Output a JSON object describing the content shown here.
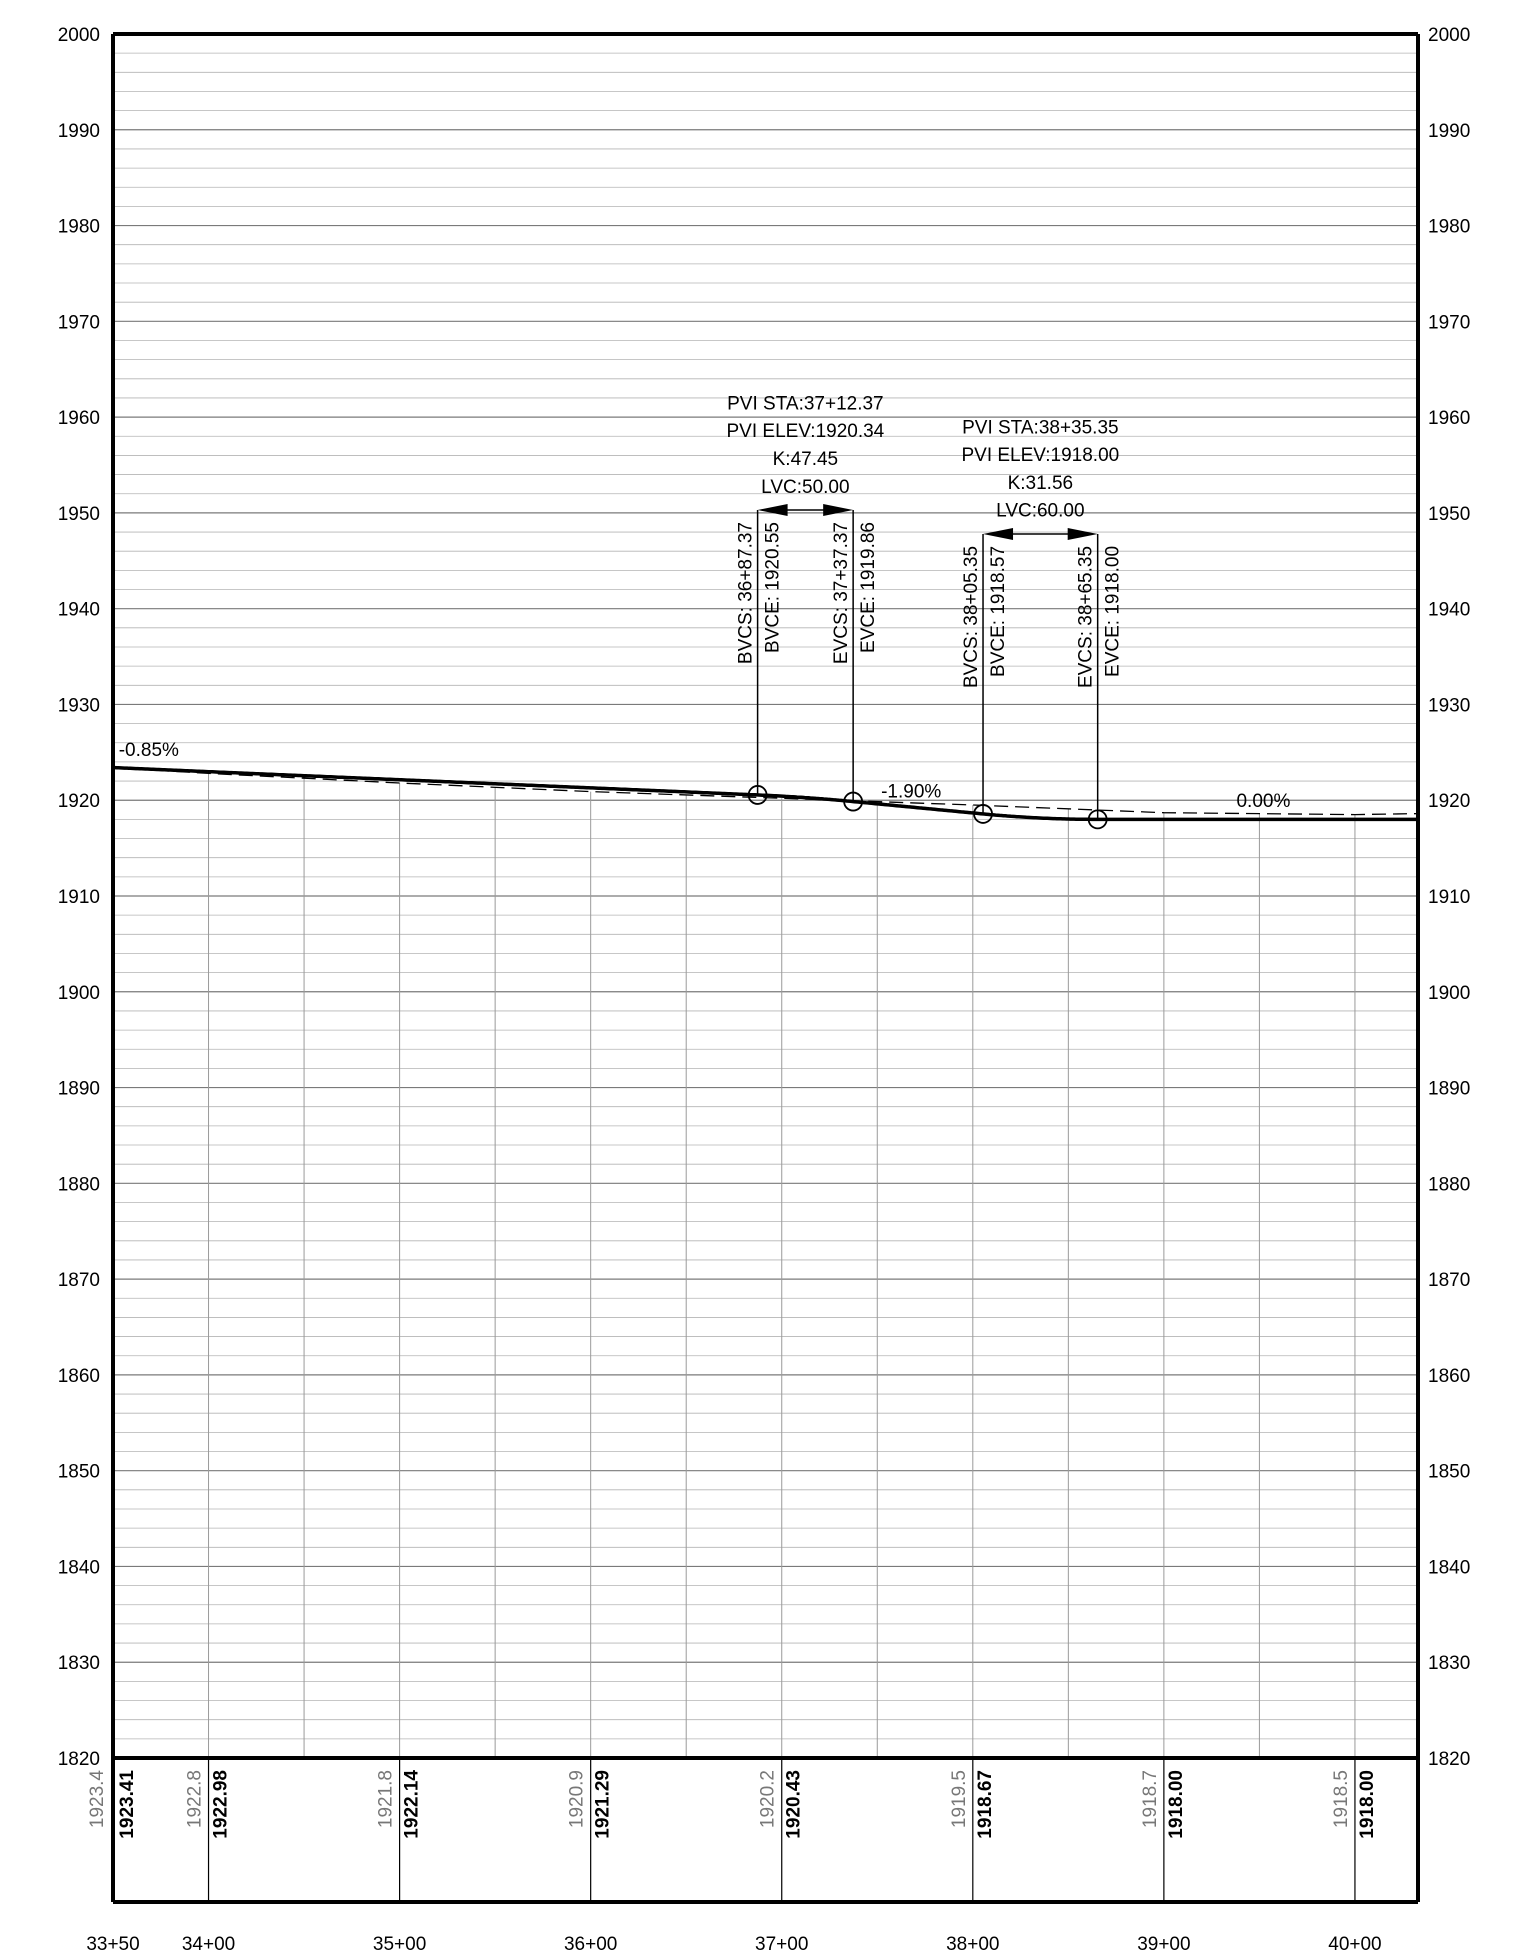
{
  "chart_data": {
    "type": "line",
    "title": "",
    "xlabel": "",
    "ylabel": "",
    "xlim": [
      3350,
      4033
    ],
    "ylim": [
      1820,
      2000
    ],
    "grid": true,
    "y_ticks": [
      "1820",
      "1830",
      "1840",
      "1850",
      "1860",
      "1870",
      "1880",
      "1890",
      "1900",
      "1910",
      "1920",
      "1930",
      "1940",
      "1950",
      "1960",
      "1970",
      "1980",
      "1990",
      "2000"
    ],
    "y_tick_values": [
      1820,
      1830,
      1840,
      1850,
      1860,
      1870,
      1880,
      1890,
      1900,
      1910,
      1920,
      1930,
      1940,
      1950,
      1960,
      1970,
      1980,
      1990,
      2000
    ],
    "x_ticks": [
      "33+50",
      "34+00",
      "35+00",
      "36+00",
      "37+00",
      "38+00",
      "39+00",
      "40+00"
    ],
    "x_tick_values": [
      3350,
      3400,
      3500,
      3600,
      3700,
      3800,
      3900,
      4000
    ],
    "series": [
      {
        "style": "dashed",
        "x": [
          3350,
          3400,
          3500,
          3600,
          3700,
          3800,
          3900,
          4000,
          4033
        ],
        "y": [
          1923.4,
          1922.8,
          1921.8,
          1920.9,
          1920.2,
          1919.5,
          1918.7,
          1918.5,
          1918.6
        ]
      },
      {
        "style": "solid-bold",
        "x": [
          3350,
          3400,
          3500,
          3600,
          3687.37,
          3712.37,
          3737.37,
          3805.35,
          3835.35,
          3865.35,
          3900,
          4000,
          4033
        ],
        "y": [
          1923.41,
          1922.98,
          1922.14,
          1921.29,
          1920.55,
          1920.34,
          1919.86,
          1918.57,
          1918.0,
          1918.0,
          1918.0,
          1918.0,
          1918.0
        ]
      }
    ],
    "grades": [
      {
        "label": "-0.85%",
        "x": 3353,
        "y": 1924.6
      },
      {
        "label": "-1.90%",
        "x": 3752,
        "y": 1920.3
      },
      {
        "label": "0.00%",
        "x": 3938,
        "y": 1919.3
      }
    ],
    "curves": [
      {
        "pvi_sta": "PVI STA:37+12.37",
        "pvi_elev": "PVI ELEV:1920.34",
        "k": "K:47.45",
        "lvc": "LVC:50.00",
        "bvc_sta": 3687.37,
        "bvc_elev": 1920.55,
        "evc_sta": 3737.37,
        "evc_elev": 1919.86,
        "bvcs_label": "BVCS: 36+87.37",
        "bvce_label": "BVCE: 1920.55",
        "evcs_label": "EVCS: 37+37.37",
        "evce_label": "EVCE: 1919.86",
        "top": 1950.3,
        "text_y": [
          1960.8,
          1957.9,
          1955.0,
          1952.1
        ]
      },
      {
        "pvi_sta": "PVI STA:38+35.35",
        "pvi_elev": "PVI ELEV:1918.00",
        "k": "K:31.56",
        "lvc": "LVC:60.00",
        "bvc_sta": 3805.35,
        "bvc_elev": 1918.57,
        "evc_sta": 3865.35,
        "evc_elev": 1918.0,
        "bvcs_label": "BVCS: 38+05.35",
        "bvce_label": "BVCE: 1918.57",
        "evcs_label": "EVCS: 38+65.35",
        "evce_label": "EVCE: 1918.00",
        "top": 1947.8,
        "text_y": [
          1958.3,
          1955.4,
          1952.5,
          1949.6
        ]
      }
    ],
    "elevation_band": [
      {
        "sta": 3350,
        "existing": "1923.4",
        "proposed": "1923.41"
      },
      {
        "sta": 3400,
        "existing": "1922.8",
        "proposed": "1922.98"
      },
      {
        "sta": 3500,
        "existing": "1921.8",
        "proposed": "1922.14"
      },
      {
        "sta": 3600,
        "existing": "1920.9",
        "proposed": "1921.29"
      },
      {
        "sta": 3700,
        "existing": "1920.2",
        "proposed": "1920.43"
      },
      {
        "sta": 3800,
        "existing": "1919.5",
        "proposed": "1918.67"
      },
      {
        "sta": 3900,
        "existing": "1918.7",
        "proposed": "1918.00"
      },
      {
        "sta": 4000,
        "existing": "1918.5",
        "proposed": "1918.00"
      }
    ]
  }
}
